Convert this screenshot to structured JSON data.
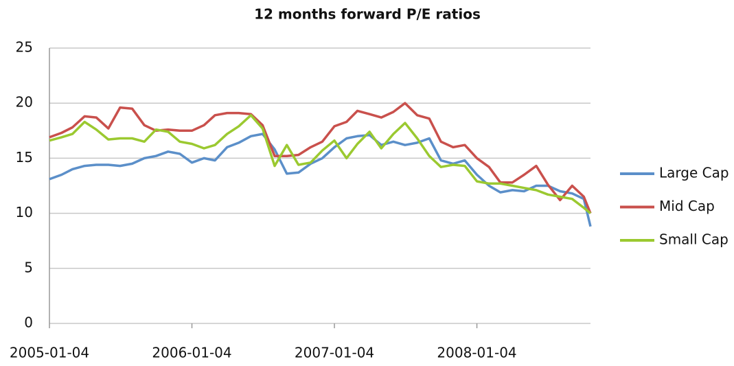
{
  "chart_data": {
    "type": "line",
    "title": "12 months forward P/E ratios",
    "x": [
      "2005-01-04",
      "2005-02-04",
      "2005-03-04",
      "2005-04-04",
      "2005-05-04",
      "2005-06-04",
      "2005-07-04",
      "2005-08-04",
      "2005-09-04",
      "2005-10-04",
      "2005-11-04",
      "2005-12-04",
      "2006-01-04",
      "2006-02-04",
      "2006-03-04",
      "2006-04-04",
      "2006-05-04",
      "2006-06-04",
      "2006-07-04",
      "2006-08-04",
      "2006-09-04",
      "2006-10-04",
      "2006-11-04",
      "2006-12-04",
      "2007-01-04",
      "2007-02-04",
      "2007-03-04",
      "2007-04-04",
      "2007-05-04",
      "2007-06-04",
      "2007-07-04",
      "2007-08-04",
      "2007-09-04",
      "2007-10-04",
      "2007-11-04",
      "2007-12-04",
      "2008-01-04",
      "2008-02-04",
      "2008-03-04",
      "2008-04-04",
      "2008-05-04",
      "2008-06-04",
      "2008-07-04",
      "2008-08-04",
      "2008-09-04",
      "2008-10-04",
      "2008-10-21"
    ],
    "series": [
      {
        "name": "Large Cap",
        "color": "#5b8fc9",
        "values": [
          13.1,
          13.5,
          14.0,
          14.3,
          14.4,
          14.4,
          14.3,
          14.5,
          15.0,
          15.2,
          15.6,
          15.4,
          14.6,
          15.0,
          14.8,
          16.0,
          16.4,
          17.0,
          17.2,
          15.8,
          13.6,
          13.7,
          14.5,
          15.0,
          16.0,
          16.8,
          17.0,
          17.1,
          16.2,
          16.5,
          16.2,
          16.4,
          16.8,
          14.8,
          14.5,
          14.8,
          13.5,
          12.5,
          11.9,
          12.1,
          12.0,
          12.5,
          12.5,
          12.0,
          11.8,
          11.3,
          8.8
        ]
      },
      {
        "name": "Mid Cap",
        "color": "#c9504c",
        "values": [
          16.9,
          17.3,
          17.8,
          18.8,
          18.7,
          17.7,
          19.6,
          19.5,
          18.0,
          17.5,
          17.6,
          17.5,
          17.5,
          18.0,
          18.9,
          19.1,
          19.1,
          19.0,
          18.0,
          15.2,
          15.2,
          15.3,
          16.0,
          16.5,
          17.9,
          18.3,
          19.3,
          19.0,
          18.7,
          19.2,
          20.0,
          18.9,
          18.6,
          16.5,
          16.0,
          16.2,
          15.0,
          14.2,
          12.8,
          12.8,
          13.5,
          14.3,
          12.6,
          11.2,
          12.5,
          11.5,
          10.0
        ]
      },
      {
        "name": "Small Cap",
        "color": "#9bc930",
        "values": [
          16.6,
          16.9,
          17.2,
          18.3,
          17.6,
          16.7,
          16.8,
          16.8,
          16.5,
          17.6,
          17.4,
          16.5,
          16.3,
          15.9,
          16.2,
          17.2,
          17.9,
          18.9,
          17.7,
          14.3,
          16.2,
          14.4,
          14.6,
          15.7,
          16.6,
          15.0,
          16.3,
          17.4,
          15.9,
          17.2,
          18.2,
          16.8,
          15.2,
          14.2,
          14.4,
          14.3,
          12.9,
          12.7,
          12.7,
          12.5,
          12.3,
          12.1,
          11.7,
          11.5,
          11.3,
          10.5,
          10.0
        ]
      }
    ],
    "xlim": [
      "2005-01-04",
      "2008-10-21"
    ],
    "xticks": [
      "2005-01-04",
      "2006-01-04",
      "2007-01-04",
      "2008-01-04"
    ],
    "ylim": [
      0,
      25
    ],
    "yticks": [
      0,
      5,
      10,
      15,
      20,
      25
    ],
    "grid": true,
    "legend": "right"
  }
}
